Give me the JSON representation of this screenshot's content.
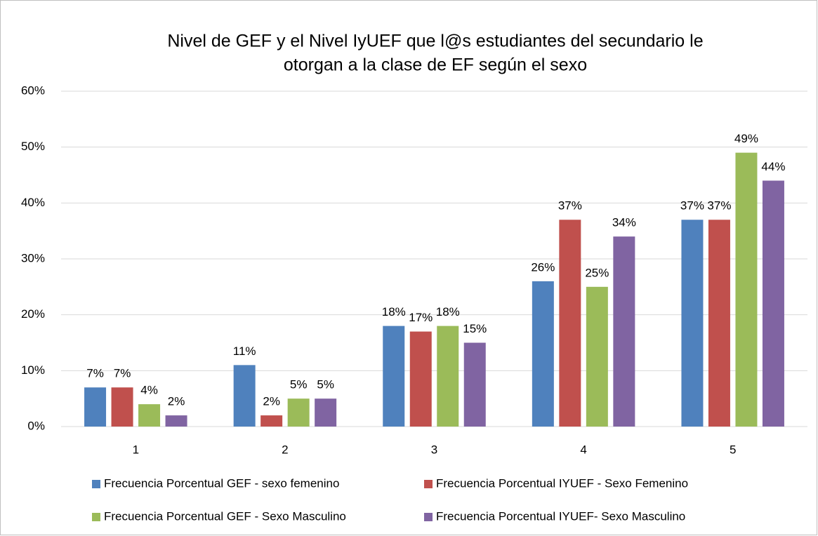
{
  "chart_data": {
    "type": "bar",
    "title": [
      "Nivel de GEF y el Nivel  IyUEF  que l@s estudiantes del secundario le",
      "otorgan a la clase de EF según el sexo"
    ],
    "categories": [
      "1",
      "2",
      "3",
      "4",
      "5"
    ],
    "series": [
      {
        "name": "Frecuencia Porcentual GEF - sexo femenino",
        "color": "#4f81bd",
        "values": [
          7,
          11,
          18,
          26,
          37
        ],
        "value_labels": [
          "7%",
          "11%",
          "18%",
          "26%",
          "37%"
        ]
      },
      {
        "name": "Frecuencia Porcentual IYUEF - Sexo Femenino",
        "color": "#c0504d",
        "values": [
          7,
          2,
          17,
          37,
          37
        ],
        "value_labels": [
          "7%",
          "2%",
          "17%",
          "37%",
          "37%"
        ]
      },
      {
        "name": "Frecuencia Porcentual GEF - Sexo Masculino",
        "color": "#9bbb59",
        "values": [
          4,
          5,
          18,
          25,
          49
        ],
        "value_labels": [
          "4%",
          "5%",
          "18%",
          "25%",
          "49%"
        ]
      },
      {
        "name": "Frecuencia Porcentual IYUEF- Sexo Masculino",
        "color": "#8064a2",
        "values": [
          2,
          5,
          15,
          34,
          44
        ],
        "value_labels": [
          "2%",
          "5%",
          "15%",
          "34%",
          "44%"
        ]
      }
    ],
    "ylim": [
      0,
      60
    ],
    "yticks": [
      {
        "value": 0,
        "label": "0%"
      },
      {
        "value": 10,
        "label": "10%"
      },
      {
        "value": 20,
        "label": "20%"
      },
      {
        "value": 30,
        "label": "30%"
      },
      {
        "value": 40,
        "label": "40%"
      },
      {
        "value": 50,
        "label": "50%"
      },
      {
        "value": 60,
        "label": "60%"
      }
    ],
    "grid": true
  }
}
